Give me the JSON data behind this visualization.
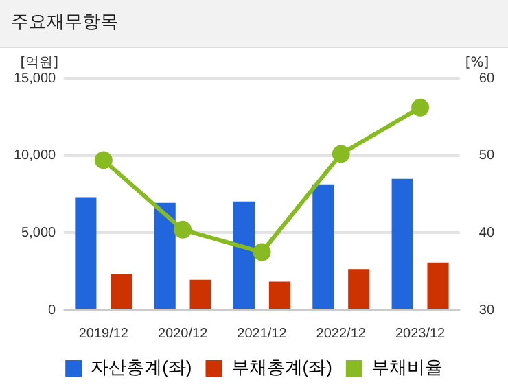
{
  "chart_data": {
    "type": "bar",
    "title": "주요재무항목",
    "ylabel": "[억원]",
    "y2label": "[%]",
    "categories": [
      "2019/12",
      "2020/12",
      "2021/12",
      "2022/12",
      "2023/12"
    ],
    "series": [
      {
        "name": "자산총계(좌)",
        "color": "#2266dd",
        "values": [
          7300,
          6930,
          7020,
          8130,
          8490
        ]
      },
      {
        "name": "부채총계(좌)",
        "color": "#cc3300",
        "values": [
          2350,
          1960,
          1840,
          2650,
          3070
        ]
      },
      {
        "name": "부채비율",
        "type": "line",
        "axis": "y2",
        "color": "#88bb22",
        "values": [
          49.4,
          40.4,
          37.5,
          50.2,
          56.2
        ]
      }
    ],
    "ylim": [
      0,
      15000
    ],
    "yticks": [
      {
        "value": 0,
        "label": "0"
      },
      {
        "value": 5000,
        "label": "5,000"
      },
      {
        "value": 10000,
        "label": "10,000"
      },
      {
        "value": 15000,
        "label": "15,000"
      }
    ],
    "y2lim": [
      30,
      60
    ],
    "y2ticks": [
      30,
      40,
      50,
      60
    ],
    "grid": "y",
    "legend": "bottom",
    "marker": "circle",
    "line_style": "solid"
  }
}
